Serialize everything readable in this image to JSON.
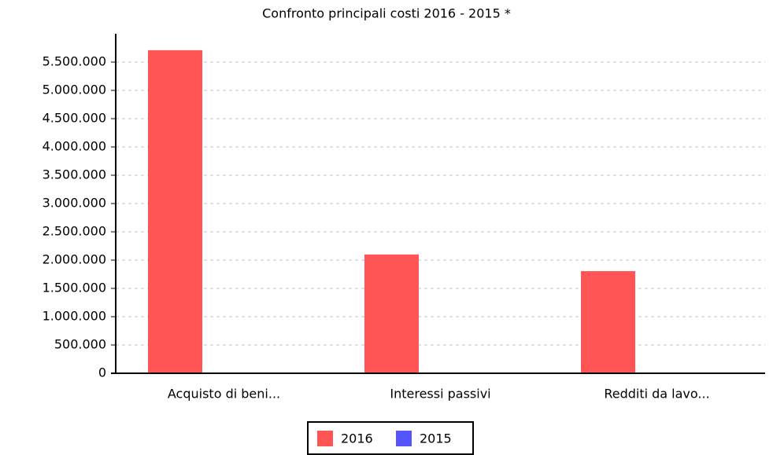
{
  "chart_data": {
    "type": "bar",
    "title": "Confronto principali costi 2016 - 2015 *",
    "categories": [
      "Acquisto di beni...",
      "Interessi passivi",
      "Redditi da lavo..."
    ],
    "series": [
      {
        "name": "2016",
        "color": "#ff5555",
        "values": [
          5710000,
          2100000,
          1805000
        ]
      },
      {
        "name": "2015",
        "color": "#5555ff",
        "values": [
          0,
          0,
          0
        ]
      }
    ],
    "ylim": [
      0,
      6000000
    ],
    "yticks": [
      0,
      {
        "value": 500000,
        "label": "500.000"
      },
      {
        "value": 1000000,
        "label": "1.000.000"
      },
      {
        "value": 1500000,
        "label": "1.500.000"
      },
      {
        "value": 2000000,
        "label": "2.000.000"
      },
      {
        "value": 2500000,
        "label": "2.500.000"
      },
      {
        "value": 3000000,
        "label": "3.000.000"
      },
      {
        "value": 3500000,
        "label": "3.500.000"
      },
      {
        "value": 4000000,
        "label": "4.000.000"
      },
      {
        "value": 4500000,
        "label": "4.500.000"
      },
      {
        "value": 5000000,
        "label": "5.000.000"
      },
      {
        "value": 5500000,
        "label": "5.500.000"
      }
    ],
    "grid": true,
    "legend": "bottom"
  }
}
